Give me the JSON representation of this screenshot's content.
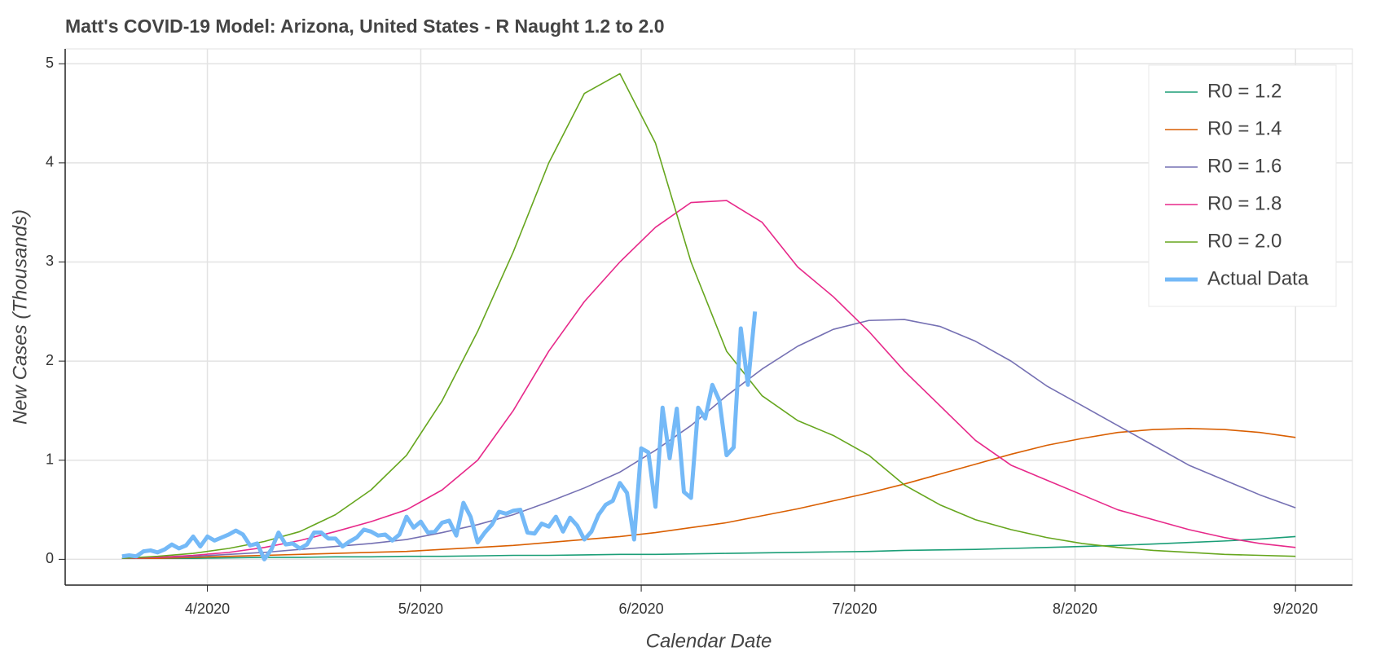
{
  "chart_data": {
    "type": "line",
    "title": "Matt's COVID-19 Model: Arizona, United States - R Naught 1.2 to 2.0",
    "xlabel": "Calendar Date",
    "ylabel": "New Cases (Thousands)",
    "grid": true,
    "legend": "top-right",
    "xlim": [
      72,
      253
    ],
    "ylim": [
      -0.26,
      5.15
    ],
    "xticks": [
      {
        "value": 92,
        "label": "4/2020"
      },
      {
        "value": 122,
        "label": "5/2020"
      },
      {
        "value": 153,
        "label": "6/2020"
      },
      {
        "value": 183,
        "label": "7/2020"
      },
      {
        "value": 214,
        "label": "8/2020"
      },
      {
        "value": 245,
        "label": "9/2020"
      }
    ],
    "yticks": [
      0,
      1,
      2,
      3,
      4,
      5
    ],
    "x": [
      80,
      85,
      90,
      95,
      100,
      105,
      110,
      115,
      120,
      125,
      130,
      135,
      140,
      145,
      150,
      155,
      160,
      165,
      170,
      175,
      180,
      185,
      190,
      195,
      200,
      205,
      210,
      215,
      220,
      225,
      230,
      235,
      240,
      245
    ],
    "series": [
      {
        "name": "R0 = 1.2",
        "color": "#1b9e77",
        "width": 1.6,
        "values": [
          0.01,
          0.01,
          0.01,
          0.015,
          0.02,
          0.02,
          0.025,
          0.025,
          0.03,
          0.03,
          0.035,
          0.04,
          0.04,
          0.045,
          0.05,
          0.05,
          0.055,
          0.06,
          0.065,
          0.07,
          0.075,
          0.08,
          0.09,
          0.095,
          0.1,
          0.11,
          0.12,
          0.13,
          0.14,
          0.155,
          0.17,
          0.185,
          0.205,
          0.23
        ]
      },
      {
        "name": "R0 = 1.4",
        "color": "#d95f02",
        "width": 1.6,
        "values": [
          0.01,
          0.01,
          0.02,
          0.03,
          0.04,
          0.05,
          0.06,
          0.07,
          0.08,
          0.1,
          0.12,
          0.14,
          0.17,
          0.2,
          0.23,
          0.27,
          0.32,
          0.37,
          0.44,
          0.51,
          0.59,
          0.67,
          0.76,
          0.86,
          0.96,
          1.06,
          1.15,
          1.22,
          1.28,
          1.31,
          1.32,
          1.31,
          1.28,
          1.23
        ]
      },
      {
        "name": "R0 = 1.6",
        "color": "#7570b3",
        "width": 1.6,
        "values": [
          0.01,
          0.02,
          0.03,
          0.05,
          0.07,
          0.1,
          0.13,
          0.16,
          0.2,
          0.27,
          0.35,
          0.45,
          0.58,
          0.72,
          0.88,
          1.1,
          1.35,
          1.65,
          1.92,
          2.15,
          2.32,
          2.41,
          2.42,
          2.35,
          2.2,
          2.0,
          1.75,
          1.55,
          1.35,
          1.15,
          0.95,
          0.8,
          0.65,
          0.52
        ]
      },
      {
        "name": "R0 = 1.8",
        "color": "#e7298a",
        "width": 1.6,
        "values": [
          0.01,
          0.02,
          0.04,
          0.07,
          0.12,
          0.19,
          0.28,
          0.38,
          0.5,
          0.7,
          1.0,
          1.5,
          2.1,
          2.6,
          3.0,
          3.35,
          3.6,
          3.62,
          3.4,
          2.95,
          2.65,
          2.3,
          1.9,
          1.55,
          1.2,
          0.95,
          0.8,
          0.65,
          0.5,
          0.4,
          0.3,
          0.22,
          0.16,
          0.12
        ]
      },
      {
        "name": "R0 = 2.0",
        "color": "#66a61e",
        "width": 1.6,
        "values": [
          0.01,
          0.03,
          0.06,
          0.11,
          0.18,
          0.28,
          0.45,
          0.7,
          1.05,
          1.6,
          2.3,
          3.1,
          4.0,
          4.7,
          4.9,
          4.2,
          3.0,
          2.1,
          1.65,
          1.4,
          1.25,
          1.05,
          0.75,
          0.55,
          0.4,
          0.3,
          0.22,
          0.16,
          0.12,
          0.09,
          0.07,
          0.05,
          0.04,
          0.03
        ]
      },
      {
        "name": "Actual Data",
        "color": "#74b9f7",
        "width": 5,
        "x": [
          80,
          81,
          82,
          83,
          84,
          85,
          86,
          87,
          88,
          89,
          90,
          91,
          92,
          93,
          94,
          95,
          96,
          97,
          98,
          99,
          100,
          101,
          102,
          103,
          104,
          105,
          106,
          107,
          108,
          109,
          110,
          111,
          112,
          113,
          114,
          115,
          116,
          117,
          118,
          119,
          120,
          121,
          122,
          123,
          124,
          125,
          126,
          127,
          128,
          129,
          130,
          131,
          132,
          133,
          134,
          135,
          136,
          137,
          138,
          139,
          140,
          141,
          142,
          143,
          144,
          145,
          146,
          147,
          148,
          149,
          150,
          151,
          152,
          153,
          154,
          155,
          156,
          157,
          158,
          159,
          160,
          161,
          162,
          163,
          164,
          165,
          166,
          167,
          168,
          169
        ],
        "values": [
          0.03,
          0.04,
          0.03,
          0.08,
          0.09,
          0.07,
          0.1,
          0.15,
          0.11,
          0.14,
          0.23,
          0.13,
          0.23,
          0.19,
          0.22,
          0.25,
          0.29,
          0.25,
          0.14,
          0.16,
          0.0,
          0.1,
          0.27,
          0.15,
          0.16,
          0.11,
          0.15,
          0.27,
          0.27,
          0.21,
          0.21,
          0.13,
          0.18,
          0.22,
          0.3,
          0.28,
          0.24,
          0.25,
          0.19,
          0.25,
          0.43,
          0.32,
          0.38,
          0.27,
          0.28,
          0.37,
          0.39,
          0.24,
          0.57,
          0.43,
          0.17,
          0.27,
          0.35,
          0.48,
          0.46,
          0.49,
          0.5,
          0.27,
          0.26,
          0.36,
          0.33,
          0.43,
          0.28,
          0.42,
          0.34,
          0.2,
          0.28,
          0.45,
          0.55,
          0.59,
          0.77,
          0.67,
          0.2,
          1.12,
          1.08,
          0.53,
          1.53,
          1.02,
          1.52,
          0.68,
          0.62,
          1.53,
          1.42,
          1.76,
          1.6,
          1.05,
          1.13,
          2.33,
          1.76,
          2.5
        ]
      }
    ]
  }
}
